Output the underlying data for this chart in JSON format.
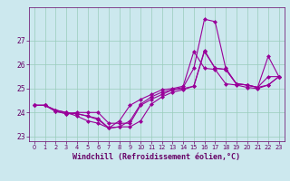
{
  "x_values": [
    0,
    1,
    2,
    3,
    4,
    5,
    6,
    7,
    8,
    9,
    10,
    11,
    12,
    13,
    14,
    15,
    16,
    17,
    18,
    19,
    20,
    21,
    22,
    23
  ],
  "line1": [
    24.3,
    24.3,
    24.1,
    24.0,
    23.85,
    23.65,
    23.55,
    23.35,
    23.4,
    23.65,
    24.35,
    24.65,
    24.85,
    24.95,
    25.05,
    25.85,
    27.9,
    27.8,
    25.85,
    25.2,
    25.15,
    25.05,
    26.35,
    25.5
  ],
  "line2": [
    24.3,
    24.3,
    24.1,
    24.0,
    23.95,
    23.85,
    23.75,
    23.35,
    23.4,
    23.4,
    23.65,
    24.35,
    24.65,
    24.85,
    24.95,
    25.1,
    26.6,
    25.85,
    25.8,
    25.2,
    25.15,
    25.05,
    25.5,
    25.5
  ],
  "line3": [
    24.3,
    24.3,
    24.05,
    23.95,
    24.0,
    24.0,
    24.0,
    23.55,
    23.55,
    23.55,
    24.3,
    24.55,
    24.75,
    24.95,
    25.0,
    25.1,
    26.55,
    25.85,
    25.8,
    25.2,
    25.15,
    25.05,
    25.15,
    25.5
  ],
  "line4": [
    24.3,
    24.3,
    24.05,
    23.95,
    23.95,
    23.85,
    23.7,
    23.35,
    23.65,
    24.3,
    24.55,
    24.75,
    24.95,
    25.0,
    25.1,
    26.55,
    25.85,
    25.8,
    25.2,
    25.15,
    25.05,
    25.0,
    25.15,
    25.5
  ],
  "xlim": [
    -0.5,
    23.5
  ],
  "ylim": [
    22.8,
    28.4
  ],
  "yticks": [
    23,
    24,
    25,
    26,
    27
  ],
  "xticks": [
    0,
    1,
    2,
    3,
    4,
    5,
    6,
    7,
    8,
    9,
    10,
    11,
    12,
    13,
    14,
    15,
    16,
    17,
    18,
    19,
    20,
    21,
    22,
    23
  ],
  "xlabel": "Windchill (Refroidissement éolien,°C)",
  "line_color": "#990099",
  "marker": "D",
  "marker_size": 2.0,
  "line_width": 0.8,
  "bg_color": "#cce8ee",
  "grid_color": "#99ccbb",
  "tick_color": "#660066",
  "label_color": "#660066",
  "spine_color": "#660066"
}
